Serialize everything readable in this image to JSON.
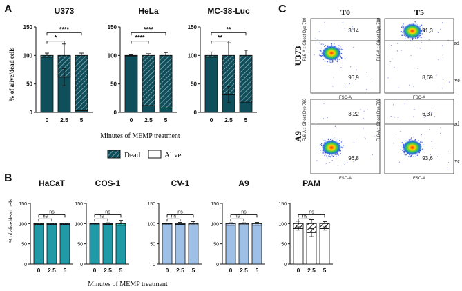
{
  "panels": {
    "A": "A",
    "B": "B",
    "C": "C"
  },
  "colors": {
    "teal_dark": "#0f4f5c",
    "teal_mid": "#1f9aa6",
    "blue_light": "#9ec0e6",
    "white": "#ffffff"
  },
  "a_ylabel": "% of alive/dead cells",
  "b_ylabel": "% of alive/dead cells",
  "a_xlabel": "Minutes of MEMP treatment",
  "b_xlabel": "Minutes of MEMP treatment",
  "legend": {
    "dead": "Dead",
    "alive": "Alive"
  },
  "chart_data": [
    {
      "id": "A-U373",
      "type": "bar",
      "stacked": true,
      "title": "U373",
      "categories": [
        "0",
        "2.5",
        "5"
      ],
      "series": [
        {
          "name": "Alive",
          "values": [
            97,
            62,
            3
          ]
        },
        {
          "name": "Dead",
          "values": [
            3,
            38,
            97
          ]
        }
      ],
      "error_top": [
        4,
        20,
        4
      ],
      "error_mid": [
        0,
        15,
        0
      ],
      "ylim": [
        0,
        150
      ],
      "yticks": [
        "0",
        "50",
        "100",
        "150"
      ],
      "sig": [
        {
          "from": 0,
          "to": 1,
          "label": "*"
        },
        {
          "from": 0,
          "to": 2,
          "label": "****"
        }
      ]
    },
    {
      "id": "A-HeLa",
      "type": "bar",
      "stacked": true,
      "title": "HeLa",
      "categories": [
        "0",
        "2.5",
        "5"
      ],
      "series": [
        {
          "name": "Alive",
          "values": [
            99,
            12,
            8
          ]
        },
        {
          "name": "Dead",
          "values": [
            1,
            88,
            92
          ]
        }
      ],
      "error_top": [
        1,
        3,
        5
      ],
      "error_mid": [
        0,
        0,
        0
      ],
      "ylim": [
        0,
        150
      ],
      "yticks": [
        "0",
        "50",
        "100",
        "150"
      ],
      "sig": [
        {
          "from": 0,
          "to": 1,
          "label": "****"
        },
        {
          "from": 0,
          "to": 2,
          "label": "****"
        }
      ]
    },
    {
      "id": "A-MC38",
      "type": "bar",
      "stacked": true,
      "title": "MC-38-Luc",
      "categories": [
        "0",
        "2.5",
        "5"
      ],
      "series": [
        {
          "name": "Alive",
          "values": [
            97,
            31,
            18
          ]
        },
        {
          "name": "Dead",
          "values": [
            3,
            69,
            82
          ]
        }
      ],
      "error_top": [
        6,
        22,
        9
      ],
      "error_mid": [
        0,
        14,
        0
      ],
      "ylim": [
        0,
        150
      ],
      "yticks": [
        "0",
        "50",
        "100",
        "150"
      ],
      "sig": [
        {
          "from": 0,
          "to": 1,
          "label": "**"
        },
        {
          "from": 0,
          "to": 2,
          "label": "**"
        }
      ]
    },
    {
      "id": "B-HaCaT",
      "type": "bar",
      "stacked": true,
      "title": "HaCaT",
      "categories": [
        "0",
        "2.5",
        "5"
      ],
      "series": [
        {
          "name": "Alive",
          "values": [
            98,
            98,
            98
          ]
        },
        {
          "name": "Dead",
          "values": [
            2,
            2,
            2
          ]
        }
      ],
      "error_top": [
        1,
        1,
        1
      ],
      "error_mid": [
        0,
        0,
        0
      ],
      "ylim": [
        0,
        150
      ],
      "yticks": [
        "0",
        "50",
        "100",
        "150"
      ],
      "sig": [
        {
          "from": 0,
          "to": 1,
          "label": "ns"
        },
        {
          "from": 0,
          "to": 2,
          "label": "ns"
        }
      ]
    },
    {
      "id": "B-COS1",
      "type": "bar",
      "stacked": true,
      "title": "COS-1",
      "categories": [
        "0",
        "2.5",
        "5"
      ],
      "series": [
        {
          "name": "Alive",
          "values": [
            99,
            98,
            96
          ]
        },
        {
          "name": "Dead",
          "values": [
            1,
            2,
            4
          ]
        }
      ],
      "error_top": [
        1,
        2,
        8
      ],
      "error_mid": [
        0,
        0,
        0
      ],
      "ylim": [
        0,
        150
      ],
      "yticks": [
        "0",
        "50",
        "100",
        "150"
      ],
      "sig": [
        {
          "from": 0,
          "to": 1,
          "label": "ns"
        },
        {
          "from": 0,
          "to": 2,
          "label": "ns"
        }
      ]
    },
    {
      "id": "B-CV1",
      "type": "bar",
      "stacked": true,
      "title": "CV-1",
      "categories": [
        "0",
        "2.5",
        "5"
      ],
      "series": [
        {
          "name": "Alive",
          "values": [
            99,
            98,
            97
          ]
        },
        {
          "name": "Dead",
          "values": [
            1,
            2,
            3
          ]
        }
      ],
      "error_top": [
        1,
        3,
        5
      ],
      "error_mid": [
        0,
        0,
        0
      ],
      "ylim": [
        0,
        150
      ],
      "yticks": [
        "0",
        "50",
        "100",
        "150"
      ],
      "sig": [
        {
          "from": 0,
          "to": 1,
          "label": "ns"
        },
        {
          "from": 0,
          "to": 2,
          "label": "ns"
        }
      ]
    },
    {
      "id": "B-A9",
      "type": "bar",
      "stacked": true,
      "title": "A9",
      "categories": [
        "0",
        "2.5",
        "5"
      ],
      "series": [
        {
          "name": "Alive",
          "values": [
            96,
            97,
            96
          ]
        },
        {
          "name": "Dead",
          "values": [
            4,
            3,
            4
          ]
        }
      ],
      "error_top": [
        2,
        2,
        3
      ],
      "error_mid": [
        0,
        0,
        0
      ],
      "ylim": [
        0,
        150
      ],
      "yticks": [
        "0",
        "50",
        "100",
        "150"
      ],
      "sig": [
        {
          "from": 0,
          "to": 1,
          "label": "ns"
        },
        {
          "from": 0,
          "to": 2,
          "label": "ns"
        }
      ]
    },
    {
      "id": "B-PAM",
      "type": "bar",
      "stacked": true,
      "title": "PAM",
      "categories": [
        "0",
        "2.5",
        "5"
      ],
      "series": [
        {
          "name": "Alive",
          "values": [
            88,
            78,
            88
          ]
        },
        {
          "name": "Dead",
          "values": [
            12,
            22,
            12
          ]
        }
      ],
      "error_top": [
        6,
        10,
        5
      ],
      "error_mid": [
        4,
        10,
        4
      ],
      "ylim": [
        0,
        150
      ],
      "yticks": [
        "0",
        "50",
        "100",
        "150"
      ],
      "sig": [
        {
          "from": 0,
          "to": 1,
          "label": "ns"
        },
        {
          "from": 0,
          "to": 2,
          "label": "ns"
        }
      ]
    }
  ],
  "flow": {
    "col_titles": [
      "T0",
      "T5"
    ],
    "row_titles": [
      "U373",
      "A9"
    ],
    "side_dead": "Dead",
    "side_alive": "Alive",
    "x_axis_label": "FSC-A",
    "y_axis_label": "FL6-A :: Ghost Dye 780",
    "plots": [
      {
        "row": 0,
        "col": 0,
        "dead": "3,14",
        "alive": "96,9"
      },
      {
        "row": 0,
        "col": 1,
        "dead": "91,3",
        "alive": "8,69"
      },
      {
        "row": 1,
        "col": 0,
        "dead": "3,22",
        "alive": "96,8"
      },
      {
        "row": 1,
        "col": 1,
        "dead": "6,37",
        "alive": "93,6"
      }
    ]
  }
}
